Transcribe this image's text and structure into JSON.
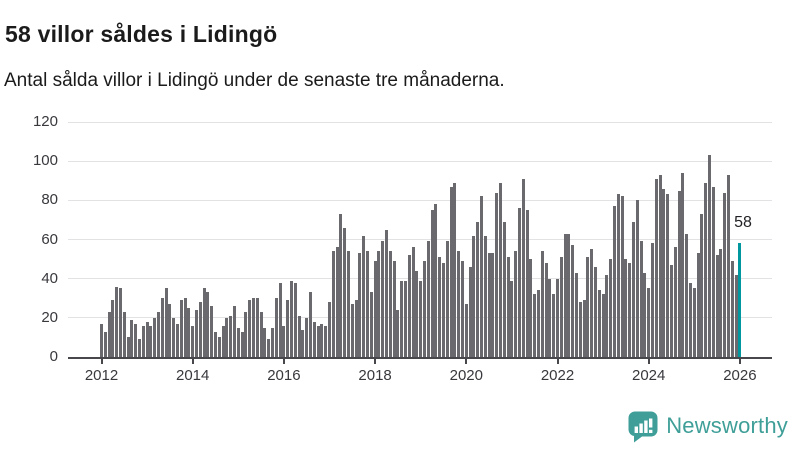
{
  "header": {
    "title": "58 villor såldes i Lidingö",
    "subtitle": "Antal sålda villor i Lidingö under de senaste tre månaderna."
  },
  "chart_data": {
    "type": "bar",
    "title": "58 villor såldes i Lidingö",
    "subtitle": "Antal sålda villor i Lidingö under de senaste tre månaderna.",
    "start_month": "2012-01",
    "end_month": "2026-01",
    "values": [
      17,
      13,
      23,
      29,
      36,
      35,
      23,
      10,
      19,
      17,
      9,
      16,
      18,
      16,
      20,
      23,
      30,
      35,
      27,
      20,
      17,
      29,
      30,
      25,
      16,
      24,
      28,
      35,
      33,
      26,
      13,
      10,
      16,
      20,
      21,
      26,
      15,
      13,
      23,
      29,
      30,
      30,
      23,
      15,
      9,
      15,
      30,
      38,
      16,
      29,
      39,
      38,
      21,
      14,
      20,
      33,
      18,
      16,
      17,
      16,
      28,
      54,
      56,
      73,
      66,
      54,
      27,
      29,
      53,
      62,
      54,
      33,
      49,
      54,
      59,
      65,
      54,
      49,
      24,
      39,
      39,
      52,
      56,
      44,
      39,
      49,
      59,
      75,
      78,
      51,
      48,
      59,
      87,
      89,
      54,
      49,
      27,
      46,
      62,
      69,
      82,
      62,
      53,
      53,
      84,
      89,
      69,
      51,
      39,
      54,
      76,
      91,
      75,
      50,
      32,
      34,
      54,
      48,
      40,
      32,
      40,
      51,
      63,
      63,
      57,
      43,
      28,
      29,
      51,
      55,
      46,
      34,
      32,
      42,
      50,
      77,
      83,
      82,
      50,
      48,
      69,
      80,
      59,
      43,
      35,
      58,
      91,
      93,
      86,
      83,
      47,
      56,
      85,
      94,
      63,
      38,
      35,
      53,
      73,
      89,
      103,
      87,
      52,
      55,
      84,
      93,
      49,
      42,
      58
    ],
    "highlight": {
      "index": 168,
      "value": 58,
      "label": "58",
      "color": "#00979e"
    },
    "bar_color": "#69696e",
    "x_tick_labels": [
      "2012",
      "2014",
      "2016",
      "2018",
      "2020",
      "2022",
      "2024",
      "2026"
    ],
    "y_tick_labels": [
      "0",
      "20",
      "40",
      "60",
      "80",
      "100",
      "120"
    ],
    "ylim": [
      0,
      120
    ],
    "grid": true,
    "legend": "none"
  },
  "footer": {
    "brand": "Newsworthy",
    "logo_icon": "bar-chart-speech-bubble-icon",
    "brand_color": "#3f9f98"
  }
}
